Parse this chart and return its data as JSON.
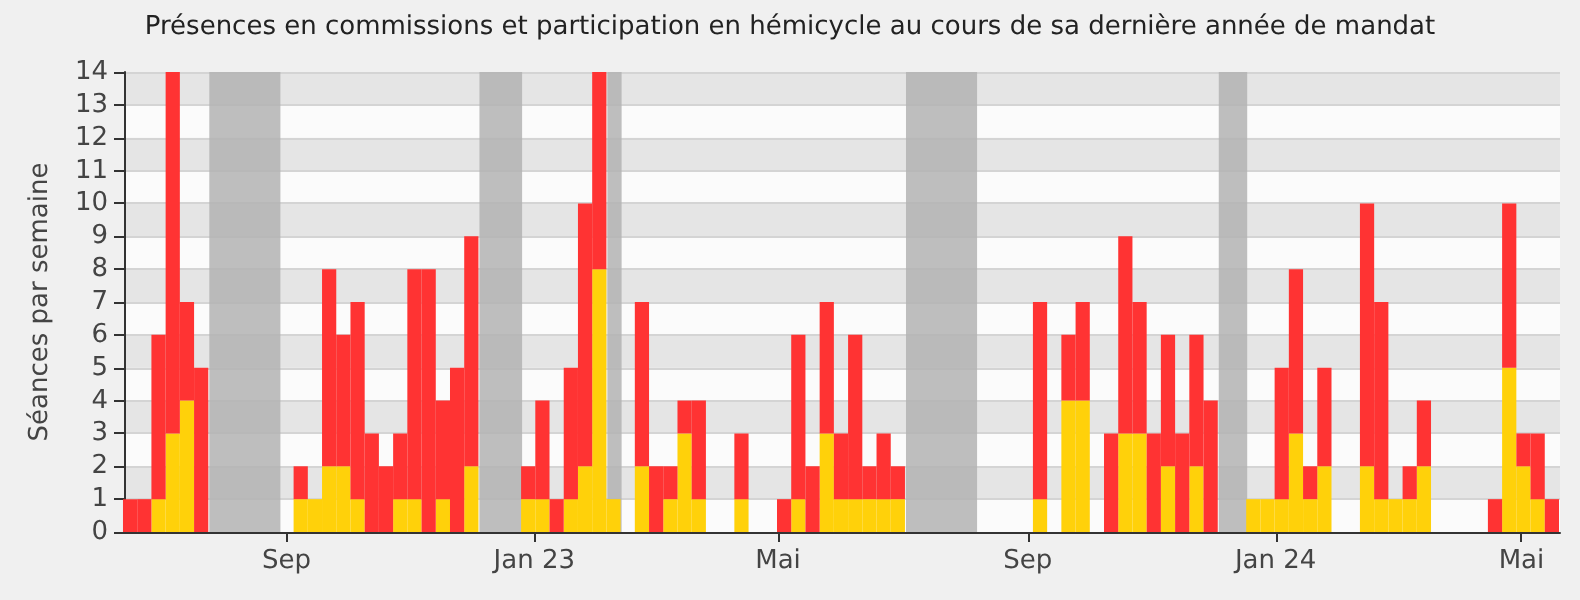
{
  "chart_data": {
    "type": "bar",
    "stacked": true,
    "title": "Présences en commissions et participation en hémicycle au cours de sa dernière année de mandat",
    "ylabel": "Séances par semaine",
    "x": [
      "2022-06-16",
      "2022-06-23",
      "2022-06-30",
      "2022-07-07",
      "2022-07-14",
      "2022-07-21",
      "2022-07-28",
      "2022-08-04",
      "2022-08-11",
      "2022-08-18",
      "2022-08-25",
      "2022-09-01",
      "2022-09-08",
      "2022-09-15",
      "2022-09-22",
      "2022-09-29",
      "2022-10-06",
      "2022-10-13",
      "2022-10-20",
      "2022-10-27",
      "2022-11-03",
      "2022-11-10",
      "2022-11-17",
      "2022-11-24",
      "2022-12-01",
      "2022-12-08",
      "2022-12-15",
      "2022-12-22",
      "2022-12-29",
      "2023-01-05",
      "2023-01-12",
      "2023-01-19",
      "2023-01-26",
      "2023-02-02",
      "2023-02-09",
      "2023-02-16",
      "2023-02-23",
      "2023-03-02",
      "2023-03-09",
      "2023-03-16",
      "2023-03-23",
      "2023-03-30",
      "2023-04-06",
      "2023-04-13",
      "2023-04-20",
      "2023-04-27",
      "2023-05-04",
      "2023-05-11",
      "2023-05-18",
      "2023-05-25",
      "2023-06-01",
      "2023-06-08",
      "2023-06-15",
      "2023-06-22",
      "2023-06-29",
      "2023-07-06",
      "2023-07-13",
      "2023-07-20",
      "2023-07-27",
      "2023-08-03",
      "2023-08-10",
      "2023-08-17",
      "2023-08-24",
      "2023-08-31",
      "2023-09-07",
      "2023-09-14",
      "2023-09-21",
      "2023-09-28",
      "2023-10-05",
      "2023-10-12",
      "2023-10-19",
      "2023-10-26",
      "2023-11-02",
      "2023-11-09",
      "2023-11-16",
      "2023-11-23",
      "2023-11-30",
      "2023-12-07",
      "2023-12-14",
      "2023-12-21",
      "2023-12-28",
      "2024-01-04",
      "2024-01-11",
      "2024-01-18",
      "2024-01-25",
      "2024-02-01",
      "2024-02-08",
      "2024-02-15",
      "2024-02-22",
      "2024-02-29",
      "2024-03-07",
      "2024-03-14",
      "2024-03-21",
      "2024-03-28",
      "2024-04-04",
      "2024-04-11",
      "2024-04-18",
      "2024-04-25",
      "2024-05-02",
      "2024-05-09",
      "2024-05-16"
    ],
    "series": [
      {
        "color": "#ffd10a",
        "values": [
          0,
          0,
          1,
          3,
          4,
          0,
          0,
          0,
          0,
          0,
          0,
          0,
          1,
          1,
          2,
          2,
          1,
          0,
          0,
          1,
          1,
          0,
          1,
          0,
          2,
          0,
          0,
          0,
          1,
          1,
          0,
          1,
          2,
          8,
          1,
          0,
          2,
          0,
          1,
          3,
          1,
          0,
          0,
          1,
          0,
          0,
          0,
          1,
          0,
          3,
          1,
          1,
          1,
          1,
          1,
          0,
          0,
          0,
          0,
          0,
          0,
          0,
          0,
          0,
          1,
          0,
          4,
          4,
          0,
          0,
          3,
          3,
          0,
          2,
          0,
          2,
          0,
          0,
          0,
          1,
          1,
          1,
          3,
          1,
          2,
          0,
          0,
          2,
          1,
          1,
          1,
          2,
          0,
          0,
          0,
          0,
          0,
          5,
          2,
          1,
          0
        ]
      },
      {
        "color": "#ff3333",
        "values": [
          1,
          1,
          5,
          11,
          3,
          5,
          0,
          0,
          0,
          0,
          0,
          0,
          1,
          0,
          6,
          4,
          6,
          3,
          2,
          2,
          7,
          8,
          3,
          5,
          7,
          0,
          0,
          0,
          1,
          3,
          1,
          4,
          8,
          6,
          0,
          0,
          5,
          2,
          1,
          1,
          3,
          0,
          0,
          2,
          0,
          0,
          1,
          5,
          2,
          4,
          2,
          5,
          1,
          2,
          1,
          0,
          0,
          0,
          0,
          0,
          0,
          0,
          0,
          0,
          6,
          0,
          2,
          3,
          0,
          3,
          6,
          4,
          3,
          4,
          3,
          4,
          4,
          0,
          0,
          0,
          0,
          4,
          5,
          1,
          3,
          0,
          0,
          8,
          6,
          0,
          1,
          2,
          0,
          0,
          0,
          0,
          1,
          5,
          1,
          2,
          1
        ]
      }
    ],
    "xlim": [
      "2022-06-13",
      "2024-05-20"
    ],
    "xticks": [
      {
        "value": "2022-09-01",
        "label": "Sep"
      },
      {
        "value": "2023-01-01",
        "label": "Jan 23"
      },
      {
        "value": "2023-05-01",
        "label": "Mai"
      },
      {
        "value": "2023-09-01",
        "label": "Sep"
      },
      {
        "value": "2024-01-01",
        "label": "Jan 24"
      },
      {
        "value": "2024-05-01",
        "label": "Mai"
      }
    ],
    "ylim": [
      0,
      14
    ],
    "yticks": [
      0,
      1,
      2,
      3,
      4,
      5,
      6,
      7,
      8,
      9,
      10,
      11,
      12,
      13,
      14
    ],
    "bands": [
      {
        "axis": "x",
        "from": "2022-07-25",
        "to": "2022-08-29",
        "color": "#b3b3b3"
      },
      {
        "axis": "x",
        "from": "2022-12-05",
        "to": "2022-12-26",
        "color": "#b3b3b3"
      },
      {
        "axis": "x",
        "from": "2023-02-06",
        "to": "2023-02-13",
        "color": "#b3b3b3"
      },
      {
        "axis": "x",
        "from": "2023-07-03",
        "to": "2023-08-07",
        "color": "#b3b3b3"
      },
      {
        "axis": "x",
        "from": "2023-12-04",
        "to": "2023-12-18",
        "color": "#b3b3b3"
      }
    ],
    "grid": "y"
  }
}
